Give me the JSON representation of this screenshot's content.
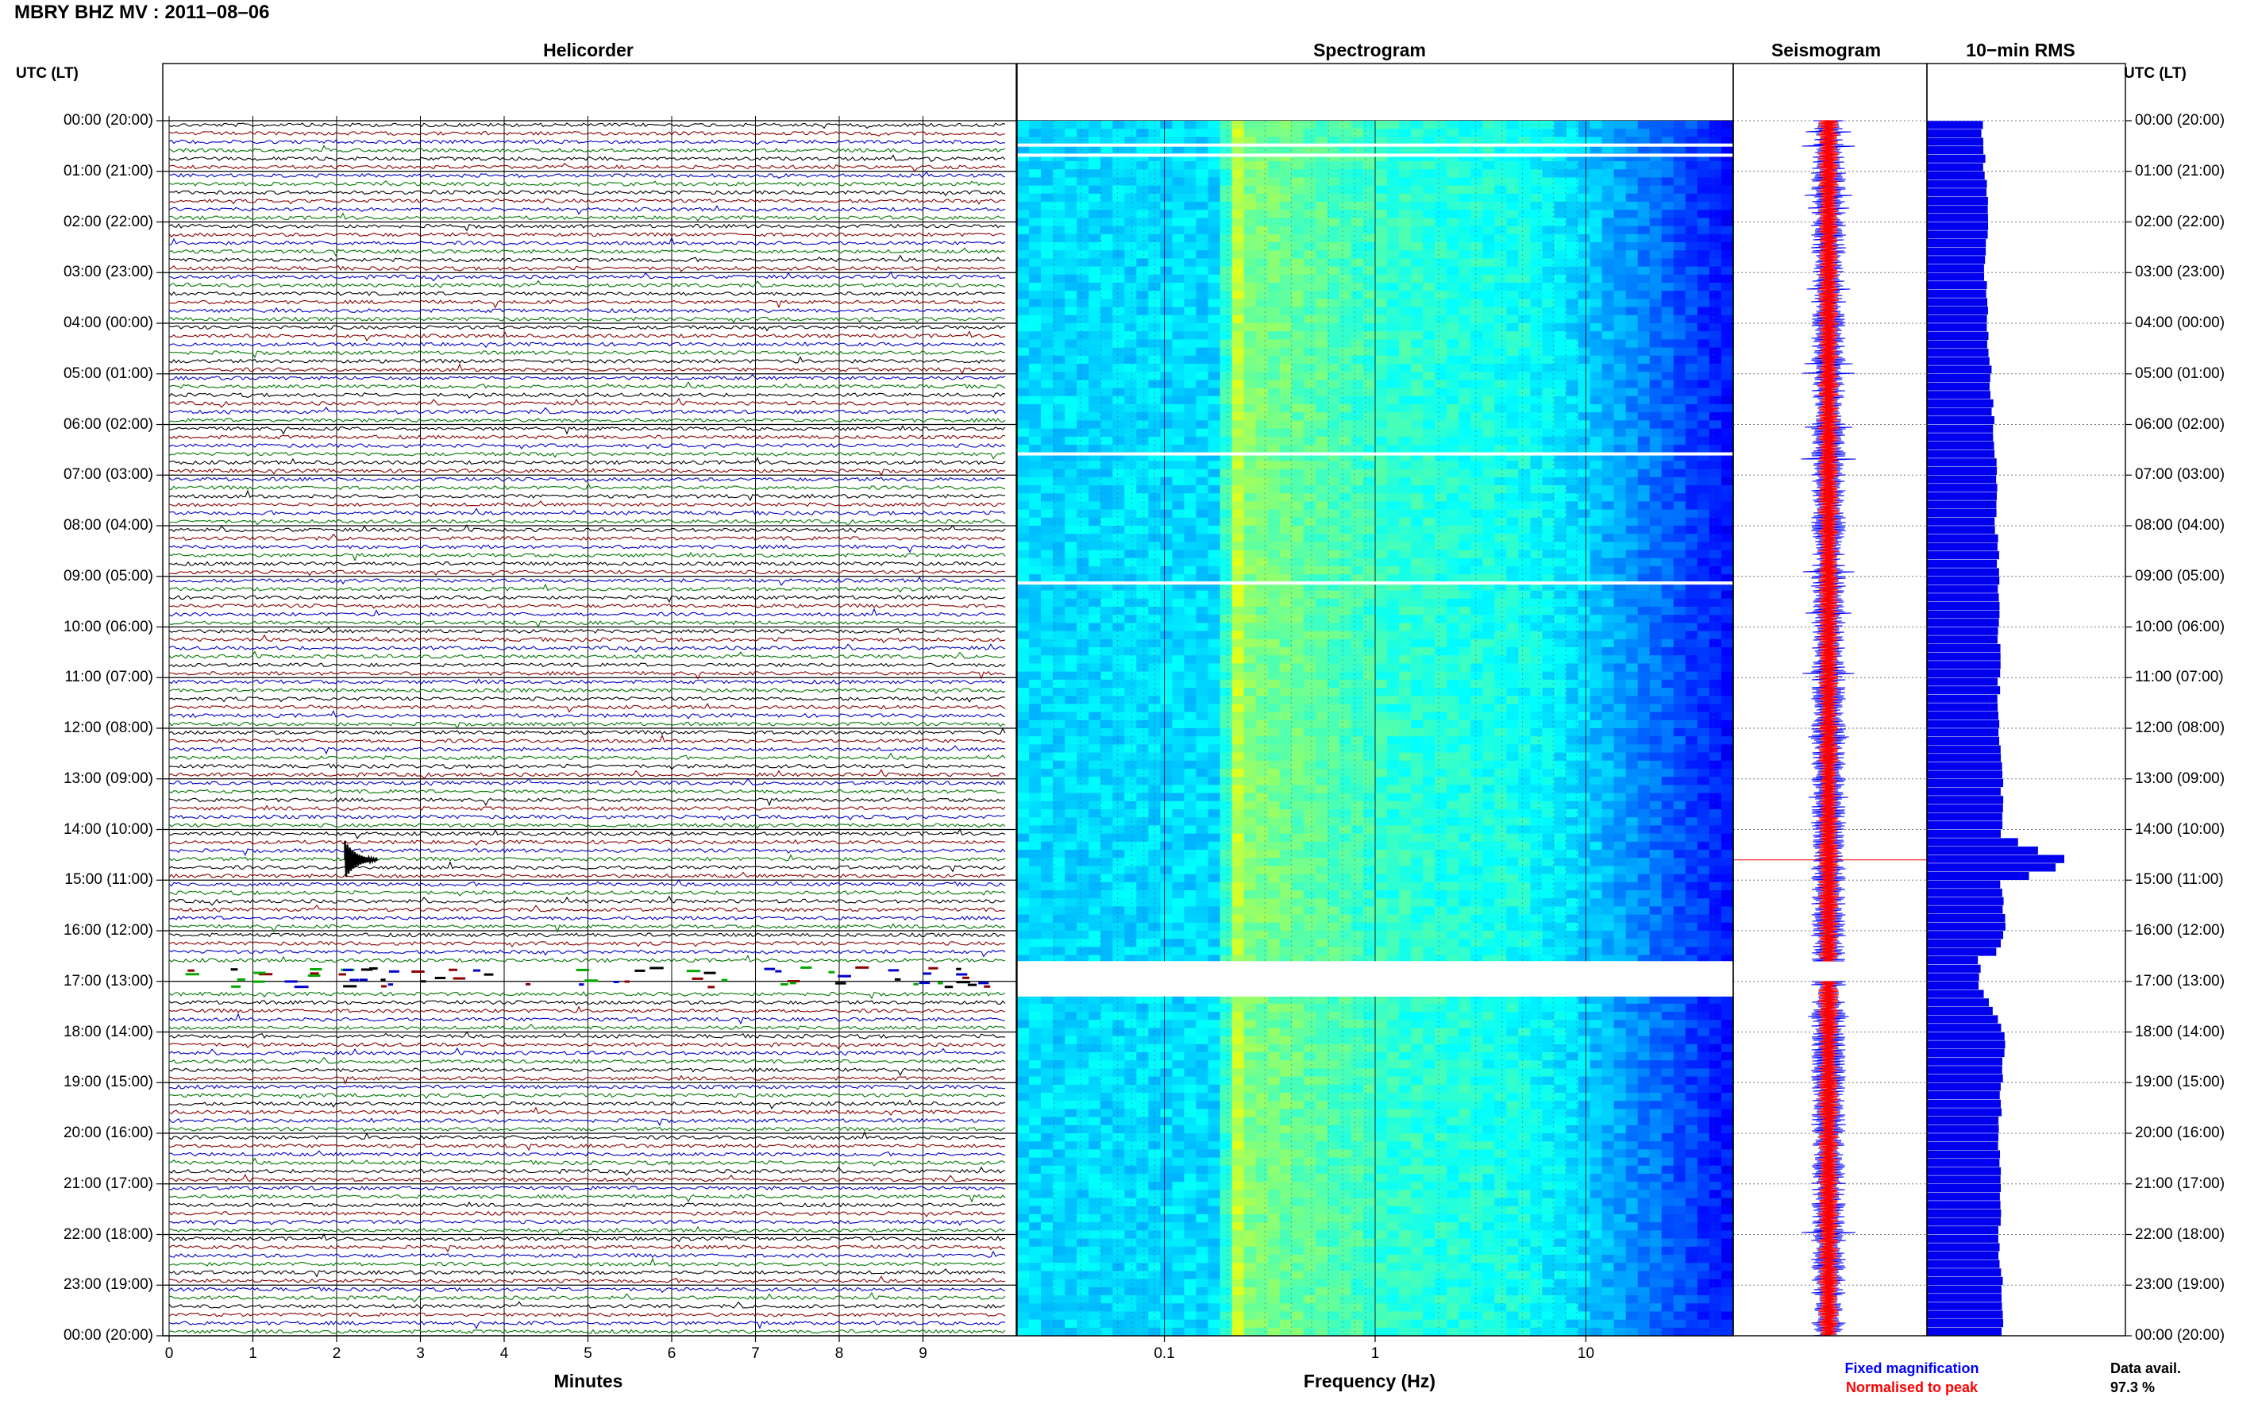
{
  "title": "MBRY BHZ MV : 2011–08–06",
  "panels": {
    "helicorder": "Helicorder",
    "spectrogram": "Spectrogram",
    "seismogram": "Seismogram",
    "rms": "10−min RMS"
  },
  "left_axis_label": "UTC (LT)",
  "right_axis_label": "UTC (LT)",
  "colors": {
    "trace_black": "#000000",
    "trace_red": "#8b0000",
    "trace_blue": "#0000cc",
    "trace_green": "#007700",
    "fixed": "#0000ff",
    "normalised": "#ff0000",
    "rms_bar": "#0000ee"
  },
  "chart_data": [
    {
      "type": "line",
      "title": "Helicorder",
      "xlabel": "Minutes",
      "ylabel": "UTC (LT)",
      "x_ticks": [
        0,
        1,
        2,
        3,
        4,
        5,
        6,
        7,
        8,
        9
      ],
      "xlim": [
        0,
        10
      ],
      "rows_per_hour": 6,
      "trace_color_cycle": [
        "black",
        "red",
        "blue",
        "green"
      ],
      "time_labels": [
        "00:00 (20:00)",
        "01:00 (21:00)",
        "02:00 (22:00)",
        "03:00 (23:00)",
        "04:00 (00:00)",
        "05:00 (01:00)",
        "06:00 (02:00)",
        "07:00 (03:00)",
        "08:00 (04:00)",
        "09:00 (05:00)",
        "10:00 (06:00)",
        "11:00 (07:00)",
        "12:00 (08:00)",
        "13:00 (09:00)",
        "14:00 (10:00)",
        "15:00 (11:00)",
        "16:00 (12:00)",
        "17:00 (13:00)",
        "18:00 (14:00)",
        "19:00 (15:00)",
        "20:00 (16:00)",
        "21:00 (17:00)",
        "22:00 (18:00)",
        "23:00 (19:00)",
        "00:00 (20:00)"
      ],
      "events": [
        {
          "hour": 14.6,
          "minute": 2.1,
          "note": "large transient"
        }
      ],
      "data_gap_hours": [
        16.65,
        17.1
      ]
    },
    {
      "type": "heatmap",
      "title": "Spectrogram",
      "xlabel": "Frequency (Hz)",
      "x_scale": "log",
      "xlim": [
        0.02,
        50
      ],
      "x_tick_labels": [
        "0.1",
        "1",
        "10"
      ],
      "ylim_hours": [
        0,
        24
      ],
      "colormap": "jet",
      "gaps_hours": [
        [
          0.45,
          0.5
        ],
        [
          0.65,
          0.7
        ],
        [
          6.55,
          6.6
        ],
        [
          9.1,
          9.15
        ],
        [
          16.6,
          17.3
        ]
      ]
    },
    {
      "type": "line",
      "title": "Seismogram",
      "series": [
        {
          "name": "Fixed magnification",
          "color": "#0000ff"
        },
        {
          "name": "Normalised to peak",
          "color": "#ff0000"
        }
      ],
      "gap_hours": [
        16.6,
        17.0
      ]
    },
    {
      "type": "bar",
      "title": "10−min RMS",
      "orientation": "horizontal",
      "interval_minutes": 10,
      "hours": [
        0,
        1,
        2,
        3,
        4,
        5,
        6,
        7,
        8,
        9,
        10,
        11,
        12,
        13,
        14,
        14.6,
        15,
        16,
        17,
        18,
        19,
        20,
        21,
        22,
        23,
        24
      ],
      "relative_values": [
        1.0,
        1.05,
        1.1,
        1.05,
        1.1,
        1.15,
        1.2,
        1.25,
        1.25,
        1.3,
        1.3,
        1.3,
        1.3,
        1.35,
        1.35,
        2.5,
        1.35,
        1.4,
        0.95,
        1.4,
        1.35,
        1.3,
        1.35,
        1.3,
        1.35,
        1.35
      ],
      "data_availability_label": "Data avail.",
      "data_availability": "97.3 %"
    }
  ]
}
